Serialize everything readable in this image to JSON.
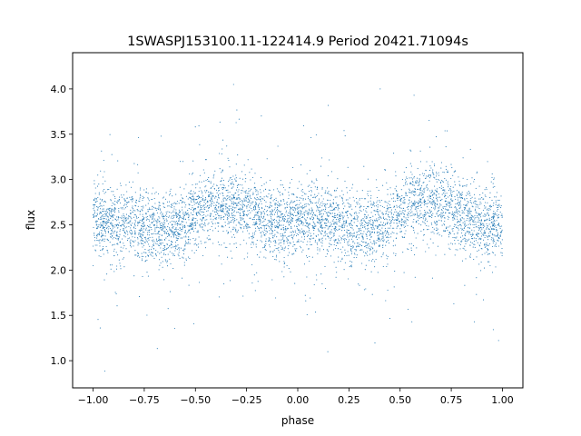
{
  "chart_data": {
    "type": "scatter",
    "title": "1SWASPJ153100.11-122414.9 Period 20421.71094s",
    "xlabel": "phase",
    "ylabel": "flux",
    "xlim": [
      -1.1,
      1.1
    ],
    "ylim": [
      0.7,
      4.4
    ],
    "grid": false,
    "legend": "none",
    "x_ticks": [
      -1.0,
      -0.75,
      -0.5,
      -0.25,
      0.0,
      0.25,
      0.5,
      0.75,
      1.0
    ],
    "x_tick_labels": [
      "−1.00",
      "−0.75",
      "−0.50",
      "−0.25",
      "0.00",
      "0.25",
      "0.50",
      "0.75",
      "1.00"
    ],
    "y_ticks": [
      1.0,
      1.5,
      2.0,
      2.5,
      3.0,
      3.5,
      4.0
    ],
    "y_tick_labels": [
      "1.0",
      "1.5",
      "2.0",
      "2.5",
      "3.0",
      "3.5",
      "4.0"
    ],
    "marker_color": "#1f77b4",
    "series": [
      {
        "x": [
          -0.95,
          -0.85,
          -0.75,
          -0.65,
          -0.55,
          -0.45,
          -0.35,
          -0.25,
          -0.15,
          -0.05,
          0.05,
          0.15,
          0.25,
          0.35,
          0.45,
          0.55,
          0.65,
          0.75,
          0.85,
          0.95
        ],
        "y": [
          2.55,
          2.52,
          2.5,
          2.45,
          2.5,
          2.7,
          2.75,
          2.65,
          2.55,
          2.5,
          2.55,
          2.52,
          2.5,
          2.45,
          2.5,
          2.7,
          2.75,
          2.65,
          2.55,
          2.5
        ]
      }
    ]
  }
}
